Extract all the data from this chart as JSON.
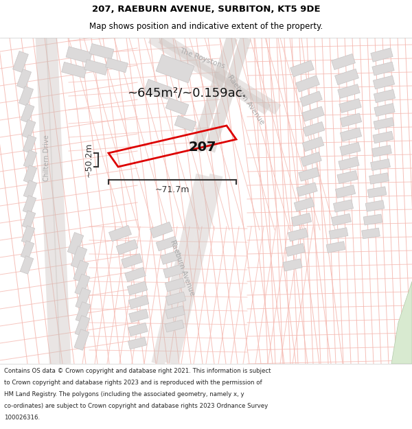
{
  "title": "207, RAEBURN AVENUE, SURBITON, KT5 9DE",
  "subtitle": "Map shows position and indicative extent of the property.",
  "footer": "Contains OS data © Crown copyright and database right 2021. This information is subject to Crown copyright and database rights 2023 and is reproduced with the permission of HM Land Registry. The polygons (including the associated geometry, namely x, y co-ordinates) are subject to Crown copyright and database rights 2023 Ordnance Survey 100026316.",
  "area_label": "~645m²/~0.159ac.",
  "width_label": "~71.7m",
  "height_label": "~50.2m",
  "number_label": "207",
  "map_bg": "#ffffff",
  "property_color": "#dd0000",
  "road_line_color": "#f5b8b0",
  "road_outline_color": "#d0b0a8",
  "building_color": "#dcdada",
  "building_edge": "#c8c4c4",
  "street_label_color": "#aaaaaa",
  "dim_color": "#333333",
  "title_color": "#000000",
  "header_bg": "#ffffff",
  "footer_bg": "#ffffff",
  "green_area_color": "#d8ead0"
}
